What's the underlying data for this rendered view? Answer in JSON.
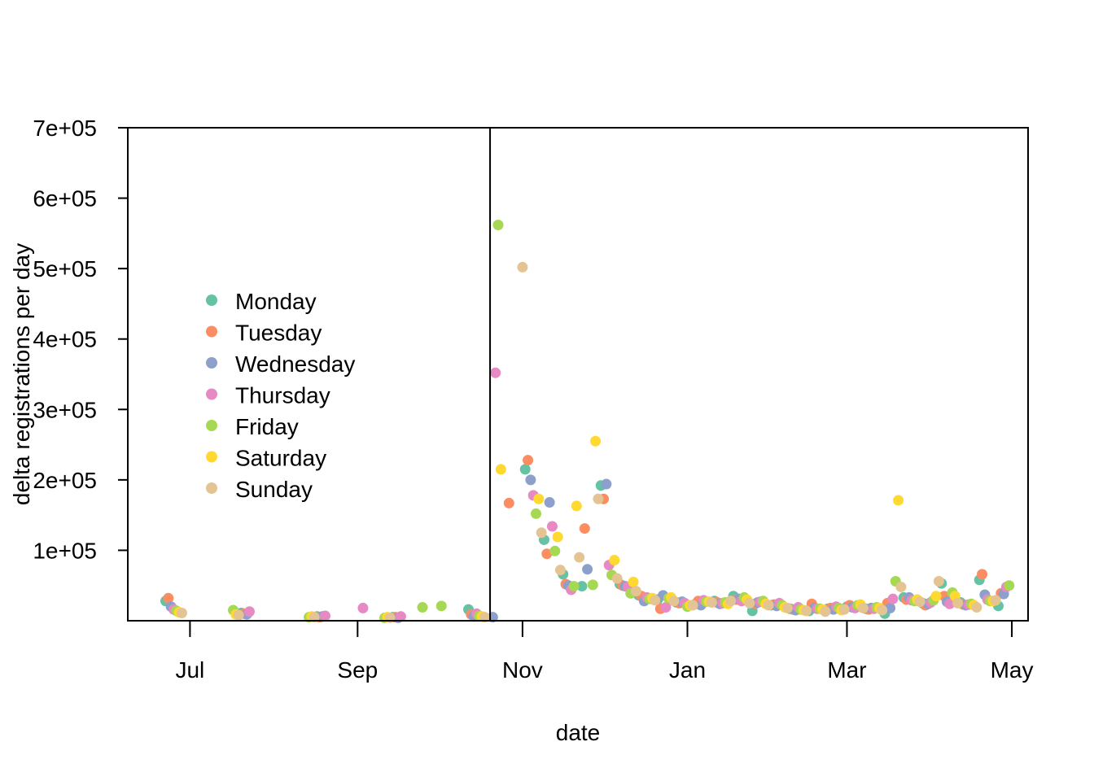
{
  "chart_data": {
    "type": "scatter",
    "title": "",
    "xlabel": "date",
    "ylabel": "delta registrations per day",
    "x_ticks": [
      "Jul",
      "Sep",
      "Nov",
      "Jan",
      "Mar",
      "May"
    ],
    "x_tick_dates": [
      "2020-07-01",
      "2020-09-01",
      "2020-11-01",
      "2021-01-01",
      "2021-03-01",
      "2021-05-01"
    ],
    "y_ticks": [
      100000,
      200000,
      300000,
      400000,
      500000,
      600000,
      700000
    ],
    "y_tick_labels": [
      "1e+05",
      "2e+05",
      "3e+05",
      "4e+05",
      "5e+05",
      "6e+05",
      "7e+05"
    ],
    "xlim": [
      "2020-06-08",
      "2021-05-07"
    ],
    "ylim": [
      0,
      700000
    ],
    "vline": "2020-10-20",
    "legend_position": "left",
    "grid": false,
    "series": [
      {
        "name": "Monday",
        "color": "#66c2a5",
        "points": [
          {
            "x": "2020-06-22",
            "y": 28000
          },
          {
            "x": "2020-07-20",
            "y": 11000
          },
          {
            "x": "2020-08-17",
            "y": 6000
          },
          {
            "x": "2020-09-14",
            "y": 5000
          },
          {
            "x": "2020-10-12",
            "y": 16000
          },
          {
            "x": "2020-11-02",
            "y": 215000
          },
          {
            "x": "2020-11-09",
            "y": 115000
          },
          {
            "x": "2020-11-16",
            "y": 66000
          },
          {
            "x": "2020-11-23",
            "y": 49000
          },
          {
            "x": "2020-11-30",
            "y": 192000
          },
          {
            "x": "2020-12-07",
            "y": 52000
          },
          {
            "x": "2020-12-14",
            "y": 36000
          },
          {
            "x": "2020-12-21",
            "y": 30000
          },
          {
            "x": "2020-12-28",
            "y": 26000
          },
          {
            "x": "2021-01-04",
            "y": 24000
          },
          {
            "x": "2021-01-11",
            "y": 28000
          },
          {
            "x": "2021-01-18",
            "y": 35000
          },
          {
            "x": "2021-01-25",
            "y": 14000
          },
          {
            "x": "2021-02-01",
            "y": 22000
          },
          {
            "x": "2021-02-08",
            "y": 17000
          },
          {
            "x": "2021-02-15",
            "y": 14000
          },
          {
            "x": "2021-02-22",
            "y": 17000
          },
          {
            "x": "2021-03-01",
            "y": 20000
          },
          {
            "x": "2021-03-08",
            "y": 17000
          },
          {
            "x": "2021-03-15",
            "y": 10000
          },
          {
            "x": "2021-03-22",
            "y": 33000
          },
          {
            "x": "2021-03-29",
            "y": 25000
          },
          {
            "x": "2021-04-05",
            "y": 53000
          },
          {
            "x": "2021-04-12",
            "y": 26000
          },
          {
            "x": "2021-04-19",
            "y": 58000
          },
          {
            "x": "2021-04-26",
            "y": 21000
          }
        ]
      },
      {
        "name": "Tuesday",
        "color": "#fc8d62",
        "points": [
          {
            "x": "2020-06-23",
            "y": 32000
          },
          {
            "x": "2020-07-21",
            "y": 10000
          },
          {
            "x": "2020-08-18",
            "y": 5000
          },
          {
            "x": "2020-09-15",
            "y": 5000
          },
          {
            "x": "2020-10-13",
            "y": 9000
          },
          {
            "x": "2020-10-27",
            "y": 167000
          },
          {
            "x": "2020-11-03",
            "y": 228000
          },
          {
            "x": "2020-11-10",
            "y": 95000
          },
          {
            "x": "2020-11-17",
            "y": 52000
          },
          {
            "x": "2020-11-24",
            "y": 131000
          },
          {
            "x": "2020-12-01",
            "y": 173000
          },
          {
            "x": "2020-12-08",
            "y": 50000
          },
          {
            "x": "2020-12-15",
            "y": 35000
          },
          {
            "x": "2020-12-22",
            "y": 17000
          },
          {
            "x": "2020-12-29",
            "y": 25000
          },
          {
            "x": "2021-01-05",
            "y": 28000
          },
          {
            "x": "2021-01-12",
            "y": 26000
          },
          {
            "x": "2021-01-19",
            "y": 30000
          },
          {
            "x": "2021-01-26",
            "y": 24000
          },
          {
            "x": "2021-02-02",
            "y": 23000
          },
          {
            "x": "2021-02-09",
            "y": 16000
          },
          {
            "x": "2021-02-16",
            "y": 24000
          },
          {
            "x": "2021-02-23",
            "y": 18000
          },
          {
            "x": "2021-03-02",
            "y": 22000
          },
          {
            "x": "2021-03-09",
            "y": 16000
          },
          {
            "x": "2021-03-16",
            "y": 25000
          },
          {
            "x": "2021-03-23",
            "y": 30000
          },
          {
            "x": "2021-03-30",
            "y": 22000
          },
          {
            "x": "2021-04-06",
            "y": 35000
          },
          {
            "x": "2021-04-13",
            "y": 23000
          },
          {
            "x": "2021-04-20",
            "y": 66000
          },
          {
            "x": "2021-04-27",
            "y": 39000
          }
        ]
      },
      {
        "name": "Wednesday",
        "color": "#8da0cb",
        "points": [
          {
            "x": "2020-06-24",
            "y": 20000
          },
          {
            "x": "2020-07-22",
            "y": 9000
          },
          {
            "x": "2020-08-19",
            "y": 6000
          },
          {
            "x": "2020-09-16",
            "y": 4000
          },
          {
            "x": "2020-10-14",
            "y": 6000
          },
          {
            "x": "2020-10-21",
            "y": 5000
          },
          {
            "x": "2020-11-04",
            "y": 200000
          },
          {
            "x": "2020-11-11",
            "y": 168000
          },
          {
            "x": "2020-11-18",
            "y": 50000
          },
          {
            "x": "2020-11-25",
            "y": 73000
          },
          {
            "x": "2020-12-02",
            "y": 194000
          },
          {
            "x": "2020-12-09",
            "y": 49000
          },
          {
            "x": "2020-12-16",
            "y": 28000
          },
          {
            "x": "2020-12-23",
            "y": 36000
          },
          {
            "x": "2020-12-30",
            "y": 27000
          },
          {
            "x": "2021-01-06",
            "y": 22000
          },
          {
            "x": "2021-01-13",
            "y": 24000
          },
          {
            "x": "2021-01-20",
            "y": 31000
          },
          {
            "x": "2021-01-27",
            "y": 26000
          },
          {
            "x": "2021-02-03",
            "y": 21000
          },
          {
            "x": "2021-02-10",
            "y": 15000
          },
          {
            "x": "2021-02-17",
            "y": 18000
          },
          {
            "x": "2021-02-24",
            "y": 16000
          },
          {
            "x": "2021-03-03",
            "y": 19000
          },
          {
            "x": "2021-03-10",
            "y": 18000
          },
          {
            "x": "2021-03-17",
            "y": 18000
          },
          {
            "x": "2021-03-24",
            "y": 33000
          },
          {
            "x": "2021-03-31",
            "y": 24000
          },
          {
            "x": "2021-04-07",
            "y": 27000
          },
          {
            "x": "2021-04-14",
            "y": 22000
          },
          {
            "x": "2021-04-21",
            "y": 37000
          },
          {
            "x": "2021-04-28",
            "y": 38000
          }
        ]
      },
      {
        "name": "Thursday",
        "color": "#e78ac3",
        "points": [
          {
            "x": "2020-06-25",
            "y": 16000
          },
          {
            "x": "2020-07-23",
            "y": 13000
          },
          {
            "x": "2020-08-20",
            "y": 7000
          },
          {
            "x": "2020-09-03",
            "y": 18000
          },
          {
            "x": "2020-09-17",
            "y": 6000
          },
          {
            "x": "2020-10-15",
            "y": 10000
          },
          {
            "x": "2020-10-22",
            "y": 352000
          },
          {
            "x": "2020-11-05",
            "y": 178000
          },
          {
            "x": "2020-11-12",
            "y": 134000
          },
          {
            "x": "2020-11-19",
            "y": 44000
          },
          {
            "x": "2020-12-03",
            "y": 79000
          },
          {
            "x": "2020-12-10",
            "y": 48000
          },
          {
            "x": "2020-12-17",
            "y": 33000
          },
          {
            "x": "2020-12-24",
            "y": 19000
          },
          {
            "x": "2020-12-31",
            "y": 25000
          },
          {
            "x": "2021-01-07",
            "y": 29000
          },
          {
            "x": "2021-01-14",
            "y": 25000
          },
          {
            "x": "2021-01-21",
            "y": 28000
          },
          {
            "x": "2021-01-28",
            "y": 27000
          },
          {
            "x": "2021-02-04",
            "y": 25000
          },
          {
            "x": "2021-02-11",
            "y": 19000
          },
          {
            "x": "2021-02-18",
            "y": 17000
          },
          {
            "x": "2021-02-25",
            "y": 20000
          },
          {
            "x": "2021-03-04",
            "y": 18000
          },
          {
            "x": "2021-03-11",
            "y": 17000
          },
          {
            "x": "2021-03-18",
            "y": 31000
          },
          {
            "x": "2021-03-25",
            "y": 29000
          },
          {
            "x": "2021-04-01",
            "y": 26000
          },
          {
            "x": "2021-04-08",
            "y": 24000
          },
          {
            "x": "2021-04-15",
            "y": 23000
          },
          {
            "x": "2021-04-22",
            "y": 30000
          },
          {
            "x": "2021-04-29",
            "y": 48000
          }
        ]
      },
      {
        "name": "Friday",
        "color": "#a6d854",
        "points": [
          {
            "x": "2020-06-26",
            "y": 14000
          },
          {
            "x": "2020-07-17",
            "y": 15000
          },
          {
            "x": "2020-08-14",
            "y": 5000
          },
          {
            "x": "2020-09-11",
            "y": 4000
          },
          {
            "x": "2020-09-25",
            "y": 19000
          },
          {
            "x": "2020-10-02",
            "y": 21000
          },
          {
            "x": "2020-10-16",
            "y": 7000
          },
          {
            "x": "2020-10-23",
            "y": 562000
          },
          {
            "x": "2020-11-06",
            "y": 152000
          },
          {
            "x": "2020-11-13",
            "y": 99000
          },
          {
            "x": "2020-11-20",
            "y": 49000
          },
          {
            "x": "2020-11-27",
            "y": 51000
          },
          {
            "x": "2020-12-04",
            "y": 65000
          },
          {
            "x": "2020-12-11",
            "y": 39000
          },
          {
            "x": "2020-12-18",
            "y": 31000
          },
          {
            "x": "2020-12-25",
            "y": 32000
          },
          {
            "x": "2021-01-01",
            "y": 20000
          },
          {
            "x": "2021-01-08",
            "y": 27000
          },
          {
            "x": "2021-01-15",
            "y": 26000
          },
          {
            "x": "2021-01-22",
            "y": 33000
          },
          {
            "x": "2021-01-29",
            "y": 28000
          },
          {
            "x": "2021-02-05",
            "y": 22000
          },
          {
            "x": "2021-02-12",
            "y": 16000
          },
          {
            "x": "2021-02-19",
            "y": 17000
          },
          {
            "x": "2021-02-26",
            "y": 18000
          },
          {
            "x": "2021-03-05",
            "y": 22000
          },
          {
            "x": "2021-03-12",
            "y": 19000
          },
          {
            "x": "2021-03-19",
            "y": 56000
          },
          {
            "x": "2021-03-26",
            "y": 28000
          },
          {
            "x": "2021-04-02",
            "y": 29000
          },
          {
            "x": "2021-04-09",
            "y": 40000
          },
          {
            "x": "2021-04-16",
            "y": 24000
          },
          {
            "x": "2021-04-23",
            "y": 28000
          },
          {
            "x": "2021-04-30",
            "y": 50000
          }
        ]
      },
      {
        "name": "Saturday",
        "color": "#ffd92f",
        "points": [
          {
            "x": "2020-06-27",
            "y": 12000
          },
          {
            "x": "2020-07-18",
            "y": 9000
          },
          {
            "x": "2020-08-15",
            "y": 6000
          },
          {
            "x": "2020-09-12",
            "y": 5000
          },
          {
            "x": "2020-10-17",
            "y": 6000
          },
          {
            "x": "2020-10-24",
            "y": 215000
          },
          {
            "x": "2020-11-07",
            "y": 173000
          },
          {
            "x": "2020-11-14",
            "y": 119000
          },
          {
            "x": "2020-11-21",
            "y": 163000
          },
          {
            "x": "2020-11-28",
            "y": 255000
          },
          {
            "x": "2020-12-05",
            "y": 86000
          },
          {
            "x": "2020-12-12",
            "y": 55000
          },
          {
            "x": "2020-12-19",
            "y": 32000
          },
          {
            "x": "2020-12-26",
            "y": 33000
          },
          {
            "x": "2021-01-02",
            "y": 22000
          },
          {
            "x": "2021-01-09",
            "y": 27000
          },
          {
            "x": "2021-01-16",
            "y": 24000
          },
          {
            "x": "2021-01-23",
            "y": 30000
          },
          {
            "x": "2021-01-30",
            "y": 24000
          },
          {
            "x": "2021-02-06",
            "y": 19000
          },
          {
            "x": "2021-02-13",
            "y": 15000
          },
          {
            "x": "2021-02-20",
            "y": 16000
          },
          {
            "x": "2021-02-27",
            "y": 15000
          },
          {
            "x": "2021-03-06",
            "y": 23000
          },
          {
            "x": "2021-03-13",
            "y": 18000
          },
          {
            "x": "2021-03-20",
            "y": 171000
          },
          {
            "x": "2021-03-27",
            "y": 30000
          },
          {
            "x": "2021-04-03",
            "y": 35000
          },
          {
            "x": "2021-04-10",
            "y": 35000
          },
          {
            "x": "2021-04-17",
            "y": 22000
          },
          {
            "x": "2021-04-24",
            "y": 28000
          }
        ]
      },
      {
        "name": "Sunday",
        "color": "#e5c494",
        "points": [
          {
            "x": "2020-06-28",
            "y": 11000
          },
          {
            "x": "2020-07-19",
            "y": 8000
          },
          {
            "x": "2020-08-16",
            "y": 5000
          },
          {
            "x": "2020-09-13",
            "y": 4000
          },
          {
            "x": "2020-10-18",
            "y": 5000
          },
          {
            "x": "2020-11-01",
            "y": 502000
          },
          {
            "x": "2020-11-08",
            "y": 125000
          },
          {
            "x": "2020-11-15",
            "y": 72000
          },
          {
            "x": "2020-11-22",
            "y": 90000
          },
          {
            "x": "2020-11-29",
            "y": 173000
          },
          {
            "x": "2020-12-06",
            "y": 60000
          },
          {
            "x": "2020-12-13",
            "y": 42000
          },
          {
            "x": "2020-12-20",
            "y": 29000
          },
          {
            "x": "2020-12-27",
            "y": 28000
          },
          {
            "x": "2021-01-03",
            "y": 22000
          },
          {
            "x": "2021-01-10",
            "y": 26000
          },
          {
            "x": "2021-01-17",
            "y": 28000
          },
          {
            "x": "2021-01-24",
            "y": 25000
          },
          {
            "x": "2021-01-31",
            "y": 22000
          },
          {
            "x": "2021-02-07",
            "y": 18000
          },
          {
            "x": "2021-02-14",
            "y": 14000
          },
          {
            "x": "2021-02-21",
            "y": 13000
          },
          {
            "x": "2021-02-28",
            "y": 16000
          },
          {
            "x": "2021-03-07",
            "y": 18000
          },
          {
            "x": "2021-03-14",
            "y": 15000
          },
          {
            "x": "2021-03-21",
            "y": 48000
          },
          {
            "x": "2021-03-28",
            "y": 27000
          },
          {
            "x": "2021-04-04",
            "y": 56000
          },
          {
            "x": "2021-04-11",
            "y": 25000
          },
          {
            "x": "2021-04-18",
            "y": 19000
          },
          {
            "x": "2021-04-25",
            "y": 29000
          }
        ]
      }
    ]
  }
}
